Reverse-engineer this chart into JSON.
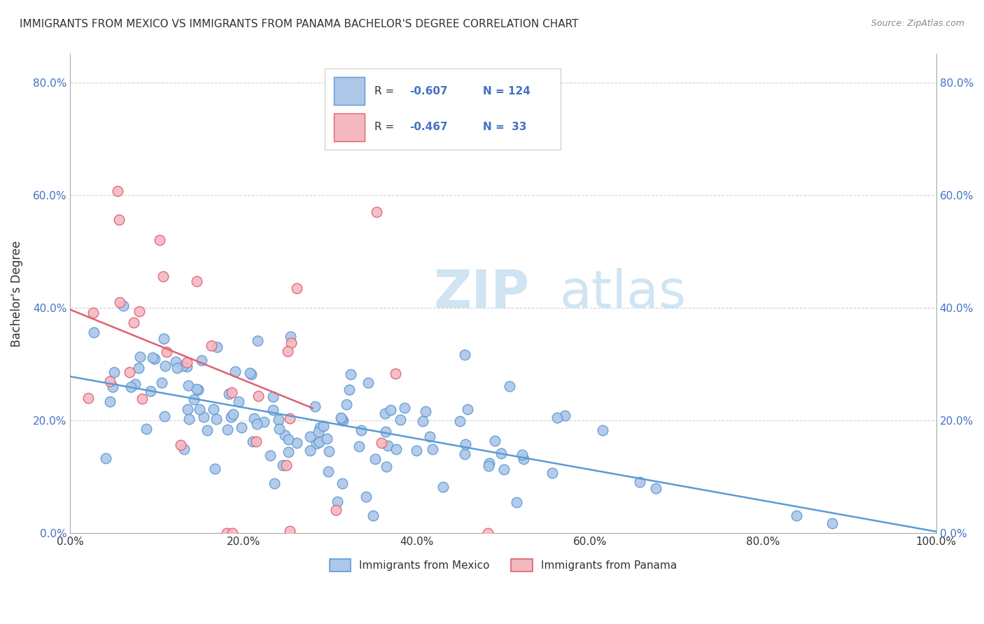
{
  "title": "IMMIGRANTS FROM MEXICO VS IMMIGRANTS FROM PANAMA BACHELOR'S DEGREE CORRELATION CHART",
  "source": "Source: ZipAtlas.com",
  "ylabel": "Bachelor's Degree",
  "xlim": [
    0.0,
    1.0
  ],
  "ylim": [
    0.0,
    0.85
  ],
  "x_ticks": [
    0.0,
    0.2,
    0.4,
    0.6,
    0.8,
    1.0
  ],
  "x_tick_labels": [
    "0.0%",
    "20.0%",
    "40.0%",
    "60.0%",
    "80.0%",
    "100.0%"
  ],
  "y_ticks": [
    0.0,
    0.2,
    0.4,
    0.6,
    0.8
  ],
  "y_tick_labels": [
    "0.0%",
    "20.0%",
    "40.0%",
    "60.0%",
    "80.0%"
  ],
  "mexico_color": "#aec6e8",
  "mexico_edge": "#5b9bd5",
  "panama_color": "#f4b8c1",
  "panama_edge": "#e06070",
  "mexico_line_color": "#5b9bd5",
  "panama_line_color": "#e06070",
  "background_color": "#ffffff",
  "grid_color": "#cccccc",
  "watermark_color": "#d0e4f2",
  "title_color": "#333333",
  "source_color": "#888888",
  "tick_color_y": "#4472c4",
  "tick_color_x": "#333333",
  "legend_r1": "R = -0.607",
  "legend_n1": "N = 124",
  "legend_r2": "R = -0.467",
  "legend_n2": "N =  33",
  "bottom_legend1": "Immigrants from Mexico",
  "bottom_legend2": "Immigrants from Panama"
}
